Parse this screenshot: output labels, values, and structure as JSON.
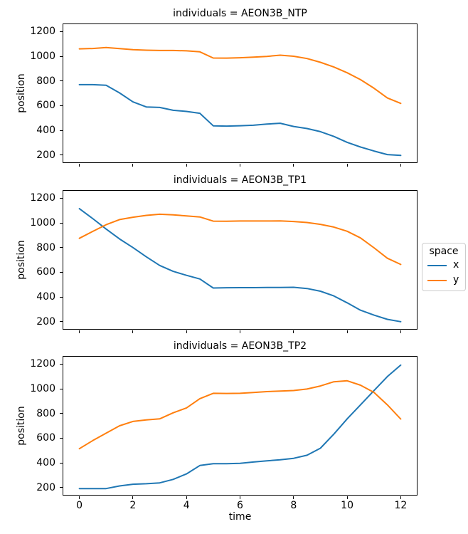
{
  "axes": {
    "xlabel": "time",
    "ylabel": "position",
    "xticks": [
      0,
      2,
      4,
      6,
      8,
      10,
      12
    ],
    "yticks": [
      200,
      400,
      600,
      800,
      1000,
      1200
    ],
    "xlim": [
      -0.6,
      12.6
    ],
    "ylim": [
      140,
      1260
    ],
    "grid": false
  },
  "colors": {
    "x": "#1f77b4",
    "y": "#ff7f0e"
  },
  "legend": {
    "title": "space",
    "position": "center right",
    "items": [
      {
        "label": "x",
        "color": "#1f77b4"
      },
      {
        "label": "y",
        "color": "#ff7f0e"
      }
    ]
  },
  "chart_data": [
    {
      "type": "line",
      "title": "individuals = AEON3B_NTP",
      "xlabel": "time",
      "ylabel": "position",
      "xlim": [
        -0.6,
        12.6
      ],
      "ylim": [
        140,
        1260
      ],
      "x": [
        0,
        0.5,
        1,
        1.5,
        2,
        2.5,
        3,
        3.5,
        4,
        4.5,
        5,
        5.5,
        6,
        6.5,
        7,
        7.5,
        8,
        8.5,
        9,
        9.5,
        10,
        10.5,
        11,
        11.5,
        12
      ],
      "series": [
        {
          "name": "x",
          "values": [
            770,
            770,
            765,
            703,
            630,
            589,
            585,
            562,
            553,
            538,
            436,
            434,
            437,
            441,
            450,
            457,
            431,
            414,
            389,
            350,
            302,
            264,
            232,
            203,
            196
          ]
        },
        {
          "name": "y",
          "values": [
            1060,
            1063,
            1071,
            1062,
            1054,
            1049,
            1047,
            1047,
            1044,
            1036,
            986,
            985,
            988,
            993,
            999,
            1009,
            1000,
            982,
            951,
            913,
            866,
            810,
            741,
            662,
            618
          ]
        }
      ]
    },
    {
      "type": "line",
      "title": "individuals = AEON3B_TP1",
      "xlabel": "time",
      "ylabel": "position",
      "xlim": [
        -0.6,
        12.6
      ],
      "ylim": [
        140,
        1260
      ],
      "x": [
        0,
        0.5,
        1,
        1.5,
        2,
        2.5,
        3,
        3.5,
        4,
        4.5,
        5,
        5.5,
        6,
        6.5,
        7,
        7.5,
        8,
        8.5,
        9,
        9.5,
        10,
        10.5,
        11,
        11.5,
        12
      ],
      "series": [
        {
          "name": "x",
          "values": [
            1115,
            1035,
            950,
            870,
            800,
            725,
            655,
            607,
            575,
            545,
            472,
            474,
            475,
            475,
            476,
            476,
            478,
            468,
            446,
            408,
            352,
            292,
            252,
            218,
            199
          ]
        },
        {
          "name": "y",
          "values": [
            875,
            931,
            985,
            1027,
            1046,
            1061,
            1070,
            1065,
            1057,
            1048,
            1014,
            1013,
            1015,
            1015,
            1015,
            1016,
            1011,
            1003,
            988,
            966,
            932,
            878,
            798,
            713,
            663
          ]
        }
      ]
    },
    {
      "type": "line",
      "title": "individuals = AEON3B_TP2",
      "xlabel": "time",
      "ylabel": "position",
      "xlim": [
        -0.6,
        12.6
      ],
      "ylim": [
        140,
        1260
      ],
      "x": [
        0,
        0.5,
        1,
        1.5,
        2,
        2.5,
        3,
        3.5,
        4,
        4.5,
        5,
        5.5,
        6,
        6.5,
        7,
        7.5,
        8,
        8.5,
        9,
        9.5,
        10,
        10.5,
        11,
        11.5,
        12
      ],
      "series": [
        {
          "name": "x",
          "values": [
            190,
            190,
            191,
            212,
            226,
            230,
            237,
            265,
            310,
            378,
            392,
            392,
            396,
            406,
            416,
            424,
            436,
            461,
            518,
            632,
            756,
            870,
            985,
            1099,
            1192
          ]
        },
        {
          "name": "y",
          "values": [
            514,
            580,
            640,
            700,
            735,
            748,
            756,
            805,
            845,
            920,
            963,
            962,
            963,
            970,
            977,
            982,
            986,
            998,
            1023,
            1057,
            1065,
            1029,
            971,
            870,
            755
          ]
        }
      ]
    }
  ]
}
